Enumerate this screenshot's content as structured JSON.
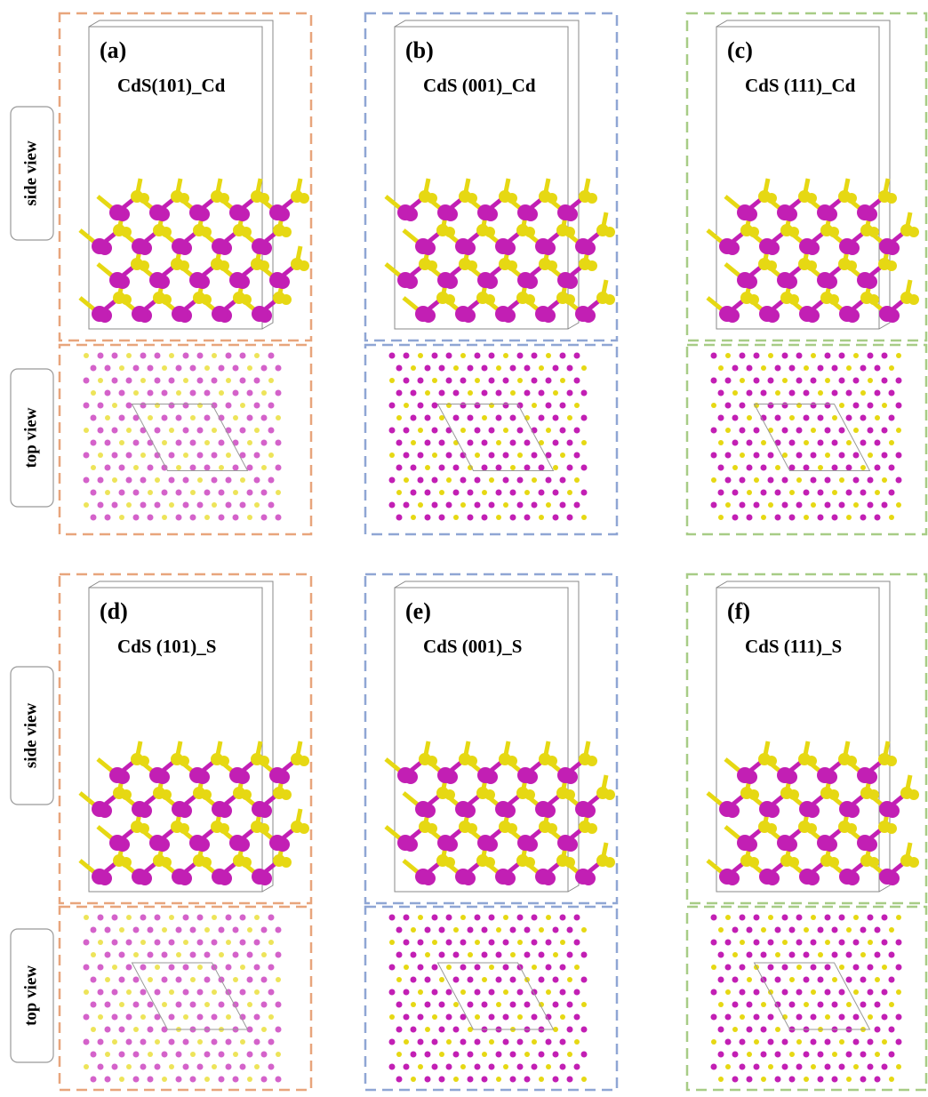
{
  "row_labels": [
    "side view",
    "top view",
    "side view",
    "top view"
  ],
  "panels": [
    {
      "label": "(a)",
      "title": "CdS(101)_Cd"
    },
    {
      "label": "(b)",
      "title": "CdS (001)_Cd"
    },
    {
      "label": "(c)",
      "title": "CdS (111)_Cd"
    },
    {
      "label": "(d)",
      "title": "CdS (101)_S"
    },
    {
      "label": "(e)",
      "title": "CdS (001)_S"
    },
    {
      "label": "(f)",
      "title": "CdS (111)_S"
    }
  ]
}
